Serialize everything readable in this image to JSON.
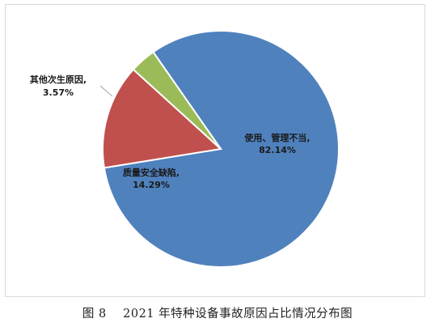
{
  "chart_data": {
    "type": "pie",
    "slices": [
      {
        "label": "使用、管理不当,",
        "value_label": "82.14%",
        "value": 82.14,
        "color": "#4f81bd"
      },
      {
        "label": "质量安全缺陷,",
        "value_label": "14.29%",
        "value": 14.29,
        "color": "#c0504d"
      },
      {
        "label": "其他次生原因,",
        "value_label": "3.57%",
        "value": 3.57,
        "color": "#9bbb59"
      }
    ]
  },
  "caption": {
    "figure_no": "图 8",
    "text": "2021 年特种设备事故原因占比情况分布图"
  }
}
